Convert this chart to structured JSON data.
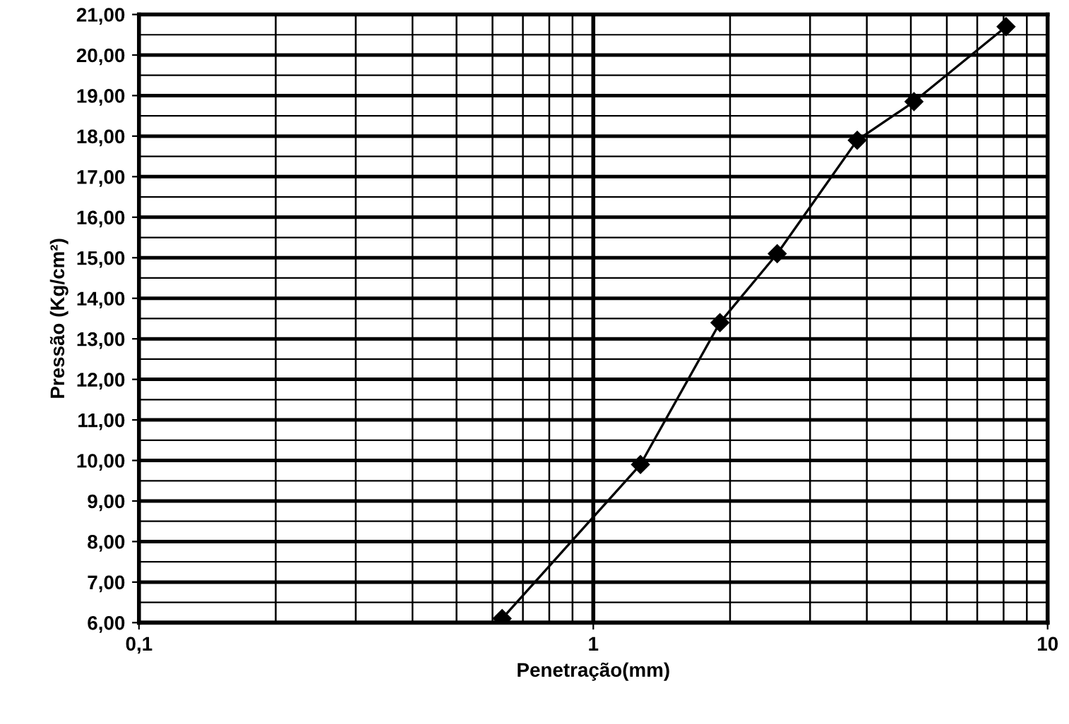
{
  "chart_data": {
    "type": "line",
    "xlabel": "Penetração(mm)",
    "ylabel": "Pressão (Kg/cm²)",
    "x": [
      0.63,
      1.27,
      1.9,
      2.54,
      3.81,
      5.08,
      8.1
    ],
    "series": [
      {
        "color": "#000000",
        "values": [
          6.1,
          9.9,
          13.4,
          15.1,
          17.9,
          18.85,
          20.7
        ]
      }
    ],
    "log": "x",
    "xlim": [
      0.1,
      10
    ],
    "ylim": [
      6,
      21
    ],
    "xticks": [
      {
        "value": 0.1,
        "label": "0,1"
      },
      {
        "value": 0.2,
        "label": null
      },
      {
        "value": 0.3,
        "label": null
      },
      {
        "value": 0.4,
        "label": null
      },
      {
        "value": 0.5,
        "label": null
      },
      {
        "value": 0.6,
        "label": null
      },
      {
        "value": 0.7,
        "label": null
      },
      {
        "value": 0.8,
        "label": null
      },
      {
        "value": 0.9,
        "label": null
      },
      1,
      {
        "value": 2,
        "label": null
      },
      {
        "value": 3,
        "label": null
      },
      {
        "value": 4,
        "label": null
      },
      {
        "value": 5,
        "label": null
      },
      {
        "value": 6,
        "label": null
      },
      {
        "value": 7,
        "label": null
      },
      {
        "value": 8,
        "label": null
      },
      {
        "value": 9,
        "label": null
      },
      10
    ],
    "yticks": [
      {
        "value": 6,
        "label": "6,00"
      },
      {
        "value": 6.5,
        "label": null
      },
      {
        "value": 7,
        "label": "7,00"
      },
      {
        "value": 7.5,
        "label": null
      },
      {
        "value": 8,
        "label": "8,00"
      },
      {
        "value": 8.5,
        "label": null
      },
      {
        "value": 9,
        "label": "9,00"
      },
      {
        "value": 9.5,
        "label": null
      },
      {
        "value": 10,
        "label": "10,00"
      },
      {
        "value": 10.5,
        "label": null
      },
      {
        "value": 11,
        "label": "11,00"
      },
      {
        "value": 11.5,
        "label": null
      },
      {
        "value": 12,
        "label": "12,00"
      },
      {
        "value": 12.5,
        "label": null
      },
      {
        "value": 13,
        "label": "13,00"
      },
      {
        "value": 13.5,
        "label": null
      },
      {
        "value": 14,
        "label": "14,00"
      },
      {
        "value": 14.5,
        "label": null
      },
      {
        "value": 15,
        "label": "15,00"
      },
      {
        "value": 15.5,
        "label": null
      },
      {
        "value": 16,
        "label": "16,00"
      },
      {
        "value": 16.5,
        "label": null
      },
      {
        "value": 17,
        "label": "17,00"
      },
      {
        "value": 17.5,
        "label": null
      },
      {
        "value": 18,
        "label": "18,00"
      },
      {
        "value": 18.5,
        "label": null
      },
      {
        "value": 19,
        "label": "19,00"
      },
      {
        "value": 19.5,
        "label": null
      },
      {
        "value": 20,
        "label": "20,00"
      },
      {
        "value": 20.5,
        "label": null
      },
      {
        "value": 21,
        "label": "21,00"
      }
    ],
    "ref_lines": [
      {
        "axis": "x",
        "value": 1,
        "color": "#000000",
        "line_style": "solid"
      }
    ],
    "grid": true,
    "marker": "diamond",
    "line_style": "solid"
  }
}
